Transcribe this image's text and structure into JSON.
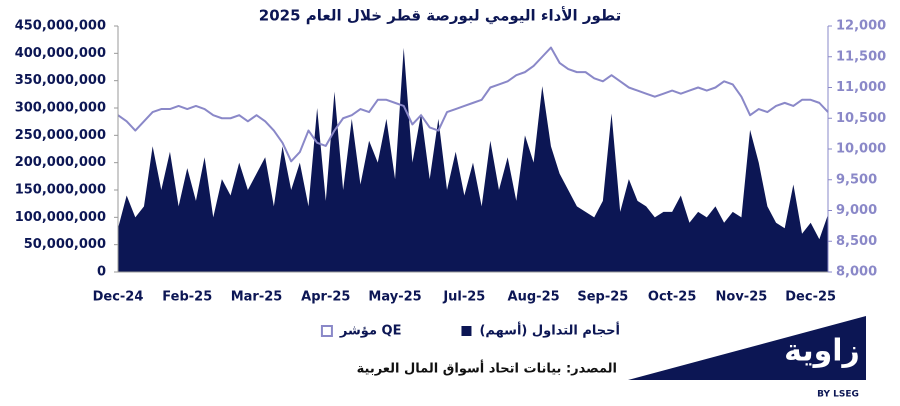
{
  "chart_data": {
    "type": "area-line",
    "title": "تطور الأداء اليومي لبورصة قطر خلال العام 2025",
    "source": "المصدر: بيانات اتحاد أسواق المال العربية",
    "logo": {
      "name": "زاوية",
      "byline": "BY LSEG"
    },
    "categories": [
      "Dec-24",
      null,
      null,
      null,
      null,
      null,
      null,
      null,
      "Feb-25",
      null,
      null,
      null,
      null,
      null,
      null,
      null,
      "Mar-25",
      null,
      null,
      null,
      null,
      null,
      null,
      null,
      "Apr-25",
      null,
      null,
      null,
      null,
      null,
      null,
      null,
      "May-25",
      null,
      null,
      null,
      null,
      null,
      null,
      null,
      "Jul-25",
      null,
      null,
      null,
      null,
      null,
      null,
      null,
      "Aug-25",
      null,
      null,
      null,
      null,
      null,
      null,
      null,
      "Sep-25",
      null,
      null,
      null,
      null,
      null,
      null,
      null,
      "Oct-25",
      null,
      null,
      null,
      null,
      null,
      null,
      null,
      "Nov-25",
      null,
      null,
      null,
      null,
      null,
      null,
      null,
      "Dec-25",
      null,
      null
    ],
    "series": [
      {
        "name": "أحجام التداول (أسهم)",
        "type": "area",
        "color": "#0c1654",
        "axis": "y",
        "values": [
          80000000,
          140000000,
          100000000,
          120000000,
          230000000,
          150000000,
          220000000,
          120000000,
          190000000,
          130000000,
          210000000,
          100000000,
          170000000,
          140000000,
          200000000,
          150000000,
          180000000,
          210000000,
          120000000,
          230000000,
          150000000,
          200000000,
          120000000,
          300000000,
          130000000,
          330000000,
          150000000,
          280000000,
          160000000,
          240000000,
          200000000,
          280000000,
          170000000,
          410000000,
          200000000,
          290000000,
          170000000,
          280000000,
          150000000,
          220000000,
          140000000,
          200000000,
          120000000,
          240000000,
          150000000,
          210000000,
          130000000,
          250000000,
          200000000,
          340000000,
          230000000,
          180000000,
          150000000,
          120000000,
          110000000,
          100000000,
          130000000,
          290000000,
          110000000,
          170000000,
          130000000,
          120000000,
          100000000,
          110000000,
          110000000,
          140000000,
          90000000,
          110000000,
          100000000,
          120000000,
          90000000,
          110000000,
          100000000,
          260000000,
          200000000,
          120000000,
          90000000,
          80000000,
          160000000,
          70000000,
          90000000,
          60000000,
          105000000
        ]
      },
      {
        "name": "مؤشر QE",
        "type": "line",
        "color": "#8a88c8",
        "axis": "y2",
        "values": [
          10550,
          10450,
          10300,
          10450,
          10600,
          10650,
          10650,
          10700,
          10650,
          10700,
          10650,
          10550,
          10500,
          10500,
          10550,
          10450,
          10550,
          10450,
          10300,
          10100,
          9800,
          9950,
          10300,
          10100,
          10050,
          10300,
          10500,
          10550,
          10650,
          10600,
          10800,
          10800,
          10750,
          10700,
          10400,
          10550,
          10350,
          10300,
          10600,
          10650,
          10700,
          10750,
          10800,
          11000,
          11050,
          11100,
          11200,
          11250,
          11350,
          11500,
          11650,
          11400,
          11300,
          11250,
          11250,
          11150,
          11100,
          11200,
          11100,
          11000,
          10950,
          10900,
          10850,
          10900,
          10950,
          10900,
          10950,
          11000,
          10950,
          11000,
          11100,
          11050,
          10850,
          10550,
          10650,
          10600,
          10700,
          10750,
          10700,
          10800,
          10800,
          10750,
          10600
        ]
      }
    ],
    "ylim": [
      0,
      450000000
    ],
    "yticks": [
      0,
      {
        "value": 50000000,
        "label": "50,000,000"
      },
      {
        "value": 100000000,
        "label": "100,000,000"
      },
      {
        "value": 150000000,
        "label": "150,000,000"
      },
      {
        "value": 200000000,
        "label": "200,000,000"
      },
      {
        "value": 250000000,
        "label": "250,000,000"
      },
      {
        "value": 300000000,
        "label": "300,000,000"
      },
      {
        "value": 350000000,
        "label": "350,000,000"
      },
      {
        "value": 400000000,
        "label": "400,000,000"
      },
      {
        "value": 450000000,
        "label": "450,000,000"
      }
    ],
    "y2lim": [
      8000,
      12000
    ],
    "y2ticks": [
      {
        "value": 8000,
        "label": "8,000"
      },
      {
        "value": 8500,
        "label": "8,500"
      },
      {
        "value": 9000,
        "label": "9,000"
      },
      {
        "value": 9500,
        "label": "9,500"
      },
      {
        "value": 10000,
        "label": "10,000"
      },
      {
        "value": 10500,
        "label": "10,500"
      },
      {
        "value": 11000,
        "label": "11,000"
      },
      {
        "value": 11500,
        "label": "11,500"
      },
      {
        "value": 12000,
        "label": "12,000"
      }
    ],
    "grid": false
  }
}
